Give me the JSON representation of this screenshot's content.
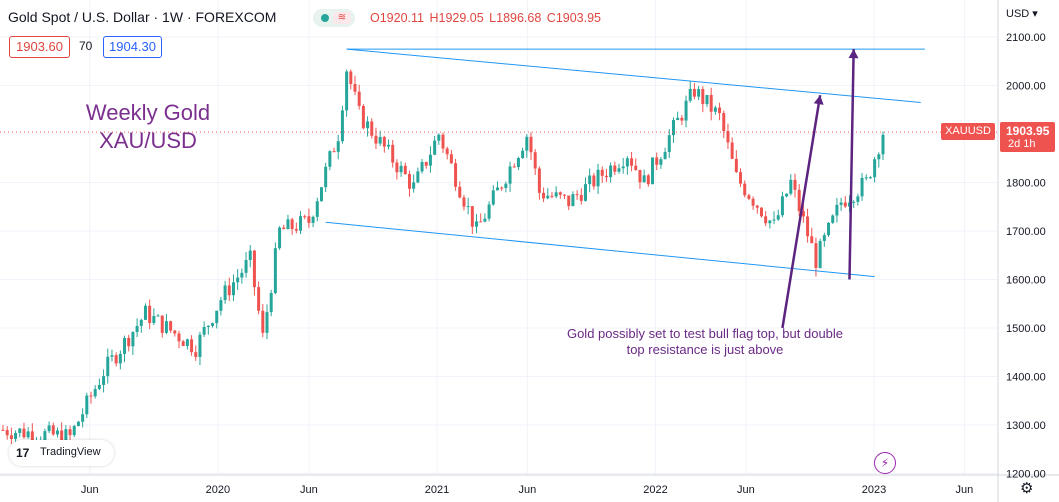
{
  "header": {
    "title": "Gold Spot / U.S. Dollar · 1W · FOREXCOM",
    "ohlc": {
      "o": "O1920.11",
      "h": "H1929.05",
      "l": "L1896.68",
      "c": "C1903.95"
    },
    "bid": "1903.60",
    "spread": "70",
    "ask": "1904.30",
    "currency": "USD"
  },
  "overlay": {
    "title_line1": "Weekly Gold",
    "title_line2": "XAU/USD",
    "annotation_line1": "Gold possibly set to test bull flag top, but double",
    "annotation_line2": "top resistance is just above",
    "logo": "TradingView",
    "logo_mark": "17"
  },
  "price_label": {
    "symbol": "XAUUSD",
    "price": "1903.95",
    "countdown": "2d 1h",
    "color": "#ef5350"
  },
  "colors": {
    "up": "#26a69a",
    "down": "#ef5350",
    "trendline": "#2196f3",
    "arrow": "#5b2480",
    "title": "#7b2f8e"
  },
  "icons": {
    "eye": "eye-icon",
    "bolt": "lightning-icon",
    "settings": "gear-icon"
  },
  "chart_data": {
    "type": "candlestick",
    "y_axis": {
      "min": 1200,
      "max": 2150,
      "ticks": [
        1200,
        1300,
        1400,
        1500,
        1600,
        1700,
        1800,
        1900,
        2000,
        2100
      ],
      "tick_labels": [
        "1200.00",
        "1300.00",
        "1400.00",
        "1500.00",
        "1600.00",
        "1700.00",
        "1800.00",
        "1900.00",
        "2000.00",
        "2100.00"
      ],
      "position": "right"
    },
    "x_axis": {
      "ticks": [
        {
          "label": "Jun",
          "date": "2019-06"
        },
        {
          "label": "2020",
          "date": "2020-01"
        },
        {
          "label": "Jun",
          "date": "2020-06"
        },
        {
          "label": "2021",
          "date": "2021-01"
        },
        {
          "label": "Jun",
          "date": "2021-06"
        },
        {
          "label": "2022",
          "date": "2022-01"
        },
        {
          "label": "Jun",
          "date": "2022-06"
        },
        {
          "label": "2023",
          "date": "2023-01"
        },
        {
          "label": "Jun",
          "date": "2023-06"
        }
      ]
    },
    "current_price": 1903.95,
    "anchors": [
      {
        "date": "2019-01-07",
        "close": 1290
      },
      {
        "date": "2019-04-29",
        "close": 1275
      },
      {
        "date": "2019-06-24",
        "close": 1410
      },
      {
        "date": "2019-09-02",
        "close": 1530
      },
      {
        "date": "2019-11-25",
        "close": 1460
      },
      {
        "date": "2020-01-06",
        "close": 1560
      },
      {
        "date": "2020-02-24",
        "close": 1640
      },
      {
        "date": "2020-03-16",
        "close": 1480
      },
      {
        "date": "2020-04-13",
        "close": 1700
      },
      {
        "date": "2020-06-01",
        "close": 1720
      },
      {
        "date": "2020-07-20",
        "close": 1900
      },
      {
        "date": "2020-08-03",
        "close": 2035
      },
      {
        "date": "2020-08-24",
        "close": 1940
      },
      {
        "date": "2020-11-23",
        "close": 1790
      },
      {
        "date": "2021-01-04",
        "close": 1900
      },
      {
        "date": "2021-03-08",
        "close": 1700
      },
      {
        "date": "2021-06-01",
        "close": 1900
      },
      {
        "date": "2021-06-21",
        "close": 1780
      },
      {
        "date": "2021-08-09",
        "close": 1760
      },
      {
        "date": "2021-11-15",
        "close": 1860
      },
      {
        "date": "2021-12-13",
        "close": 1800
      },
      {
        "date": "2022-03-07",
        "close": 1990
      },
      {
        "date": "2022-04-18",
        "close": 1935
      },
      {
        "date": "2022-05-16",
        "close": 1810
      },
      {
        "date": "2022-07-18",
        "close": 1710
      },
      {
        "date": "2022-08-15",
        "close": 1800
      },
      {
        "date": "2022-09-26",
        "close": 1640
      },
      {
        "date": "2022-11-07",
        "close": 1760
      },
      {
        "date": "2022-12-19",
        "close": 1800
      },
      {
        "date": "2023-01-16",
        "close": 1904
      }
    ],
    "trendlines": [
      {
        "name": "double-top-resistance",
        "from": {
          "date": "2020-08-03",
          "price": 2075
        },
        "to": {
          "date": "2023-03-27",
          "price": 2075
        }
      },
      {
        "name": "flag-upper",
        "from": {
          "date": "2020-08-03",
          "price": 2075
        },
        "to": {
          "date": "2023-03-20",
          "price": 1965
        }
      },
      {
        "name": "flag-lower",
        "from": {
          "date": "2020-06-29",
          "price": 1718
        },
        "to": {
          "date": "2023-01-02",
          "price": 1606
        }
      }
    ],
    "arrows": [
      {
        "name": "arrow-to-flag-top",
        "from": {
          "date": "2022-08-01",
          "price": 1500
        },
        "to": {
          "date": "2022-10-03",
          "price": 1980
        }
      },
      {
        "name": "arrow-to-double-top",
        "from": {
          "date": "2022-11-21",
          "price": 1600
        },
        "to": {
          "date": "2022-11-28",
          "price": 2075
        }
      }
    ],
    "price_line": 1903.95,
    "grid": true
  }
}
